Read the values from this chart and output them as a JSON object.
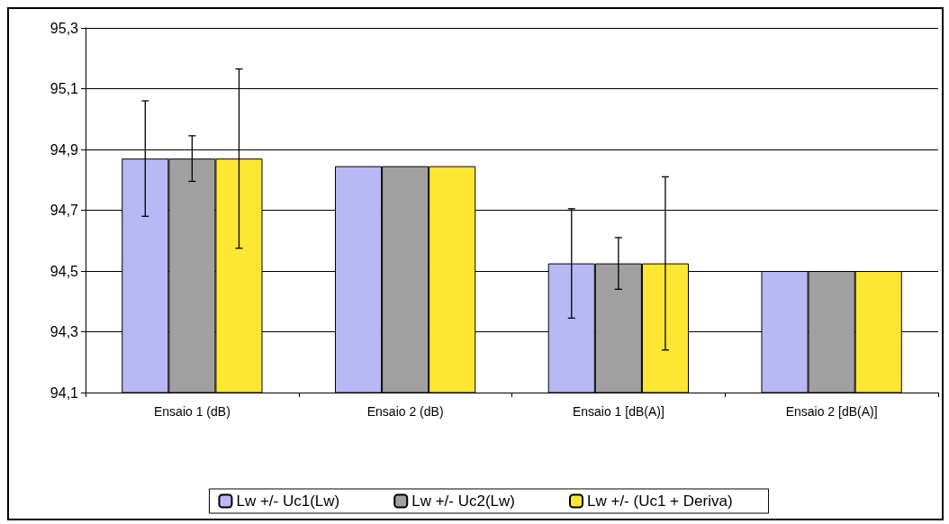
{
  "chart_data": {
    "type": "bar",
    "categories": [
      "Ensaio 1 (dB)",
      "Ensaio 2 (dB)",
      "Ensaio 1 [dB(A)]",
      "Ensaio 2 [dB(A)]"
    ],
    "series": [
      {
        "name": "Lw +/- Uc1(Lw)",
        "color": "#b8b8f5",
        "values": [
          94.87,
          94.845,
          94.525,
          94.5
        ],
        "errors": [
          0.19,
          null,
          0.18,
          null
        ]
      },
      {
        "name": "Lw +/- Uc2(Lw)",
        "color": "#a0a0a0",
        "values": [
          94.87,
          94.845,
          94.525,
          94.5
        ],
        "errors": [
          0.075,
          null,
          0.085,
          null
        ]
      },
      {
        "name": "Lw +/- (Uc1 + Deriva)",
        "color": "#ffe633",
        "values": [
          94.87,
          94.845,
          94.525,
          94.5
        ],
        "errors": [
          0.295,
          null,
          0.285,
          null
        ]
      }
    ],
    "ylim": [
      94.1,
      95.3
    ],
    "yticks": [
      {
        "value": 94.1,
        "label": "94,1"
      },
      {
        "value": 94.3,
        "label": "94,3"
      },
      {
        "value": 94.5,
        "label": "94,5"
      },
      {
        "value": 94.7,
        "label": "94,7"
      },
      {
        "value": 94.9,
        "label": "94,9"
      },
      {
        "value": 95.1,
        "label": "95,1"
      },
      {
        "value": 95.3,
        "label": "95,3"
      }
    ],
    "grid": "y",
    "legend": "bottom"
  }
}
